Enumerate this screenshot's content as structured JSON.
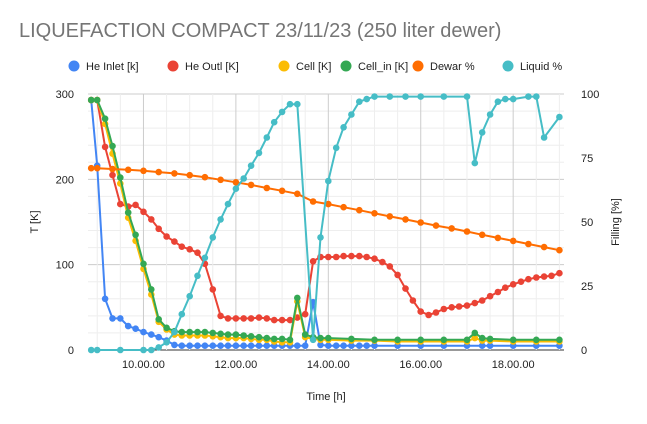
{
  "chart_data": {
    "type": "line",
    "title": "LIQUEFACTION COMPACT 23/11/23 (250 liter dewer)",
    "xlabel": "Time [h]",
    "ylabel": "T [K]",
    "y2label": "Filling [%]",
    "xlim": [
      8.8,
      19.1
    ],
    "ylim": [
      0,
      300
    ],
    "y2lim": [
      0,
      100
    ],
    "x_ticks": [
      {
        "value": 10,
        "label": "10.00.00"
      },
      {
        "value": 12,
        "label": "12.00.00"
      },
      {
        "value": 14,
        "label": "14.00.00"
      },
      {
        "value": 16,
        "label": "16.00.00"
      },
      {
        "value": 18,
        "label": "18.00.00"
      }
    ],
    "y_ticks": [
      0,
      100,
      200,
      300
    ],
    "y2_ticks": [
      0,
      25,
      50,
      75,
      100
    ],
    "grid": true,
    "legend_position": "top",
    "series": [
      {
        "name": "He Inlet [k]",
        "color": "#4285f4",
        "axis": "left",
        "points": [
          [
            8.87,
            293
          ],
          [
            9.0,
            216
          ],
          [
            9.17,
            60
          ],
          [
            9.33,
            37
          ],
          [
            9.5,
            37
          ],
          [
            9.67,
            28
          ],
          [
            9.83,
            25
          ],
          [
            10.0,
            21
          ],
          [
            10.17,
            18
          ],
          [
            10.33,
            15
          ],
          [
            10.5,
            11
          ],
          [
            10.67,
            6
          ],
          [
            10.83,
            5
          ],
          [
            11.0,
            5
          ],
          [
            11.17,
            5
          ],
          [
            11.33,
            5
          ],
          [
            11.5,
            5
          ],
          [
            11.67,
            5
          ],
          [
            11.83,
            5
          ],
          [
            12.0,
            5
          ],
          [
            12.17,
            5
          ],
          [
            12.33,
            5
          ],
          [
            12.5,
            5
          ],
          [
            12.67,
            5
          ],
          [
            12.83,
            5
          ],
          [
            13.0,
            5
          ],
          [
            13.17,
            5
          ],
          [
            13.33,
            5
          ],
          [
            13.5,
            5
          ],
          [
            13.67,
            56
          ],
          [
            13.83,
            6
          ],
          [
            14.0,
            5
          ],
          [
            14.17,
            5
          ],
          [
            14.33,
            5
          ],
          [
            14.5,
            5
          ],
          [
            14.67,
            5
          ],
          [
            14.83,
            5
          ],
          [
            15.0,
            5
          ],
          [
            15.5,
            5
          ],
          [
            16.0,
            5
          ],
          [
            16.5,
            5
          ],
          [
            17.0,
            5
          ],
          [
            17.33,
            5
          ],
          [
            17.5,
            5
          ],
          [
            18.0,
            5
          ],
          [
            18.5,
            5
          ],
          [
            19.0,
            5
          ]
        ]
      },
      {
        "name": "He Outl [K]",
        "color": "#ea4335",
        "axis": "left",
        "points": [
          [
            8.87,
            293
          ],
          [
            9.0,
            293
          ],
          [
            9.17,
            238
          ],
          [
            9.33,
            205
          ],
          [
            9.5,
            171
          ],
          [
            9.67,
            168
          ],
          [
            9.83,
            170
          ],
          [
            10.0,
            162
          ],
          [
            10.17,
            153
          ],
          [
            10.33,
            142
          ],
          [
            10.5,
            133
          ],
          [
            10.67,
            127
          ],
          [
            10.83,
            121
          ],
          [
            11.0,
            118
          ],
          [
            11.17,
            114
          ],
          [
            11.33,
            101
          ],
          [
            11.5,
            71
          ],
          [
            11.67,
            40
          ],
          [
            11.83,
            37
          ],
          [
            12.0,
            37
          ],
          [
            12.17,
            37
          ],
          [
            12.33,
            37
          ],
          [
            12.5,
            38
          ],
          [
            12.67,
            37
          ],
          [
            12.83,
            35
          ],
          [
            13.0,
            35
          ],
          [
            13.17,
            35
          ],
          [
            13.33,
            38
          ],
          [
            13.5,
            42
          ],
          [
            13.67,
            104
          ],
          [
            13.83,
            109
          ],
          [
            14.0,
            109
          ],
          [
            14.17,
            109
          ],
          [
            14.33,
            110
          ],
          [
            14.5,
            110
          ],
          [
            14.67,
            110
          ],
          [
            14.83,
            109
          ],
          [
            15.0,
            107
          ],
          [
            15.17,
            103
          ],
          [
            15.33,
            98
          ],
          [
            15.5,
            88
          ],
          [
            15.67,
            72
          ],
          [
            15.83,
            58
          ],
          [
            16.0,
            45
          ],
          [
            16.17,
            41
          ],
          [
            16.33,
            44
          ],
          [
            16.5,
            48
          ],
          [
            16.67,
            50
          ],
          [
            16.83,
            51
          ],
          [
            17.0,
            52
          ],
          [
            17.17,
            55
          ],
          [
            17.33,
            58
          ],
          [
            17.5,
            63
          ],
          [
            17.67,
            68
          ],
          [
            17.83,
            73
          ],
          [
            18.0,
            77
          ],
          [
            18.17,
            80
          ],
          [
            18.33,
            83
          ],
          [
            18.5,
            85
          ],
          [
            18.67,
            86
          ],
          [
            18.83,
            87
          ],
          [
            19.0,
            90
          ]
        ]
      },
      {
        "name": "Cell [K]",
        "color": "#fbbc04",
        "axis": "left",
        "points": [
          [
            8.87,
            293
          ],
          [
            9.0,
            293
          ],
          [
            9.17,
            265
          ],
          [
            9.33,
            230
          ],
          [
            9.5,
            195
          ],
          [
            9.67,
            155
          ],
          [
            9.83,
            128
          ],
          [
            10.0,
            95
          ],
          [
            10.17,
            65
          ],
          [
            10.33,
            33
          ],
          [
            10.5,
            24
          ],
          [
            10.67,
            18
          ],
          [
            10.83,
            17
          ],
          [
            11.0,
            17
          ],
          [
            11.17,
            17
          ],
          [
            11.33,
            17
          ],
          [
            11.5,
            16
          ],
          [
            11.67,
            15
          ],
          [
            11.83,
            14
          ],
          [
            12.0,
            14
          ],
          [
            12.17,
            14
          ],
          [
            12.33,
            13
          ],
          [
            12.5,
            12
          ],
          [
            12.67,
            12
          ],
          [
            12.83,
            10
          ],
          [
            13.0,
            9
          ],
          [
            13.17,
            9
          ],
          [
            13.33,
            57
          ],
          [
            13.5,
            15
          ],
          [
            13.67,
            13
          ],
          [
            13.83,
            12
          ],
          [
            14.0,
            12
          ],
          [
            14.5,
            11
          ],
          [
            15.0,
            11
          ],
          [
            15.5,
            10
          ],
          [
            16.0,
            10
          ],
          [
            16.5,
            10
          ],
          [
            17.0,
            10
          ],
          [
            17.17,
            14
          ],
          [
            17.33,
            11
          ],
          [
            17.5,
            11
          ],
          [
            18.0,
            10
          ],
          [
            18.5,
            10
          ],
          [
            19.0,
            10
          ]
        ]
      },
      {
        "name": "Cell_in [K]",
        "color": "#34a853",
        "axis": "left",
        "points": [
          [
            8.87,
            293
          ],
          [
            9.0,
            293
          ],
          [
            9.17,
            271
          ],
          [
            9.33,
            239
          ],
          [
            9.5,
            202
          ],
          [
            9.67,
            161
          ],
          [
            9.83,
            135
          ],
          [
            10.0,
            101
          ],
          [
            10.17,
            71
          ],
          [
            10.33,
            36
          ],
          [
            10.5,
            26
          ],
          [
            10.67,
            22
          ],
          [
            10.83,
            21
          ],
          [
            11.0,
            21
          ],
          [
            11.17,
            21
          ],
          [
            11.33,
            21
          ],
          [
            11.5,
            20
          ],
          [
            11.67,
            19
          ],
          [
            11.83,
            18
          ],
          [
            12.0,
            18
          ],
          [
            12.17,
            17
          ],
          [
            12.33,
            16
          ],
          [
            12.5,
            15
          ],
          [
            12.67,
            14
          ],
          [
            12.83,
            13
          ],
          [
            13.0,
            13
          ],
          [
            13.17,
            12
          ],
          [
            13.33,
            61
          ],
          [
            13.5,
            18
          ],
          [
            13.67,
            15
          ],
          [
            13.83,
            14
          ],
          [
            14.0,
            14
          ],
          [
            14.5,
            13
          ],
          [
            15.0,
            12
          ],
          [
            15.5,
            12
          ],
          [
            16.0,
            12
          ],
          [
            16.5,
            12
          ],
          [
            17.0,
            12
          ],
          [
            17.17,
            20
          ],
          [
            17.33,
            14
          ],
          [
            17.5,
            13
          ],
          [
            18.0,
            12
          ],
          [
            18.5,
            12
          ],
          [
            19.0,
            12
          ]
        ]
      },
      {
        "name": "Dewar %",
        "color": "#ff6d01",
        "axis": "right",
        "points": [
          [
            8.87,
            71
          ],
          [
            9.0,
            71
          ],
          [
            9.33,
            70.7
          ],
          [
            9.67,
            70.4
          ],
          [
            10.0,
            70
          ],
          [
            10.33,
            69.5
          ],
          [
            10.67,
            69
          ],
          [
            11.0,
            68.3
          ],
          [
            11.33,
            67.5
          ],
          [
            11.67,
            66.5
          ],
          [
            12.0,
            65.5
          ],
          [
            12.33,
            64.5
          ],
          [
            12.67,
            63.3
          ],
          [
            13.0,
            62.2
          ],
          [
            13.33,
            61
          ],
          [
            13.67,
            58
          ],
          [
            14.0,
            57
          ],
          [
            14.33,
            55.8
          ],
          [
            14.67,
            54.6
          ],
          [
            15.0,
            53.4
          ],
          [
            15.33,
            52.2
          ],
          [
            15.67,
            51
          ],
          [
            16.0,
            49.8
          ],
          [
            16.33,
            48.6
          ],
          [
            16.67,
            47.5
          ],
          [
            17.0,
            46.3
          ],
          [
            17.33,
            45
          ],
          [
            17.67,
            43.8
          ],
          [
            18.0,
            42.6
          ],
          [
            18.33,
            41.4
          ],
          [
            18.67,
            40.2
          ],
          [
            19.0,
            39
          ]
        ]
      },
      {
        "name": "Liquid %",
        "color": "#46bdc6",
        "axis": "right",
        "points": [
          [
            8.87,
            0
          ],
          [
            9.0,
            0
          ],
          [
            9.5,
            0
          ],
          [
            10.0,
            0
          ],
          [
            10.17,
            0
          ],
          [
            10.33,
            1
          ],
          [
            10.5,
            3
          ],
          [
            10.67,
            7
          ],
          [
            10.83,
            14
          ],
          [
            11.0,
            21
          ],
          [
            11.17,
            29
          ],
          [
            11.33,
            36
          ],
          [
            11.5,
            44
          ],
          [
            11.67,
            51
          ],
          [
            11.83,
            57
          ],
          [
            12.0,
            63
          ],
          [
            12.17,
            67
          ],
          [
            12.33,
            72
          ],
          [
            12.5,
            77
          ],
          [
            12.67,
            83
          ],
          [
            12.83,
            89
          ],
          [
            13.0,
            93
          ],
          [
            13.17,
            96
          ],
          [
            13.33,
            96
          ],
          [
            13.67,
            4
          ],
          [
            13.83,
            44
          ],
          [
            14.0,
            66
          ],
          [
            14.17,
            79
          ],
          [
            14.33,
            87
          ],
          [
            14.5,
            92
          ],
          [
            14.67,
            97
          ],
          [
            14.83,
            98
          ],
          [
            15.0,
            99
          ],
          [
            15.33,
            99
          ],
          [
            15.67,
            99
          ],
          [
            16.0,
            99
          ],
          [
            16.5,
            99
          ],
          [
            17.0,
            99
          ],
          [
            17.17,
            73
          ],
          [
            17.33,
            85
          ],
          [
            17.5,
            92
          ],
          [
            17.67,
            97
          ],
          [
            17.83,
            98
          ],
          [
            18.0,
            98
          ],
          [
            18.33,
            99
          ],
          [
            18.5,
            99
          ],
          [
            18.67,
            83
          ],
          [
            19.0,
            91
          ]
        ]
      }
    ]
  }
}
